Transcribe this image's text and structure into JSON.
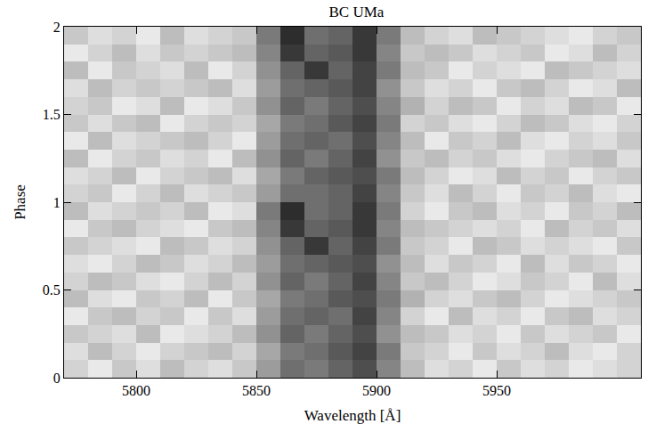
{
  "chart_data": {
    "type": "heatmap",
    "title": "BC UMa",
    "x_label": "Wavelength [Å]",
    "y_label": "Phase",
    "x": [
      5775,
      5785,
      5795,
      5805,
      5815,
      5825,
      5835,
      5845,
      5855,
      5865,
      5875,
      5885,
      5895,
      5905,
      5915,
      5925,
      5935,
      5945,
      5955,
      5965,
      5975,
      5985,
      5995,
      6005
    ],
    "y": [
      0.05,
      0.15,
      0.25,
      0.35,
      0.45,
      0.55,
      0.65,
      0.75,
      0.85,
      0.95,
      1.05,
      1.15,
      1.25,
      1.35,
      1.45,
      1.55,
      1.65,
      1.75,
      1.85,
      1.95
    ],
    "cells": [
      [
        0.2,
        0.1,
        0.25,
        0.15,
        0.3,
        0.2,
        0.15,
        0.25,
        0.45,
        0.65,
        0.6,
        0.7,
        0.8,
        0.55,
        0.3,
        0.15,
        0.2,
        0.1,
        0.25,
        0.15,
        0.2,
        0.1,
        0.15,
        0.2
      ],
      [
        0.15,
        0.3,
        0.2,
        0.1,
        0.2,
        0.25,
        0.3,
        0.2,
        0.4,
        0.6,
        0.65,
        0.75,
        0.85,
        0.6,
        0.25,
        0.2,
        0.1,
        0.25,
        0.15,
        0.2,
        0.3,
        0.15,
        0.1,
        0.2
      ],
      [
        0.25,
        0.2,
        0.15,
        0.3,
        0.1,
        0.15,
        0.2,
        0.3,
        0.5,
        0.7,
        0.6,
        0.7,
        0.8,
        0.5,
        0.3,
        0.25,
        0.15,
        0.2,
        0.1,
        0.25,
        0.15,
        0.2,
        0.25,
        0.1
      ],
      [
        0.1,
        0.25,
        0.3,
        0.2,
        0.25,
        0.1,
        0.25,
        0.15,
        0.45,
        0.65,
        0.7,
        0.65,
        0.85,
        0.55,
        0.2,
        0.1,
        0.3,
        0.15,
        0.2,
        0.1,
        0.25,
        0.3,
        0.15,
        0.2
      ],
      [
        0.3,
        0.15,
        0.1,
        0.25,
        0.2,
        0.3,
        0.1,
        0.25,
        0.4,
        0.6,
        0.65,
        0.75,
        0.8,
        0.6,
        0.35,
        0.2,
        0.15,
        0.25,
        0.3,
        0.2,
        0.1,
        0.15,
        0.2,
        0.25
      ],
      [
        0.2,
        0.3,
        0.25,
        0.15,
        0.1,
        0.2,
        0.3,
        0.2,
        0.5,
        0.7,
        0.6,
        0.7,
        0.85,
        0.55,
        0.25,
        0.3,
        0.2,
        0.1,
        0.15,
        0.25,
        0.2,
        0.1,
        0.3,
        0.15
      ],
      [
        0.15,
        0.1,
        0.2,
        0.3,
        0.25,
        0.15,
        0.2,
        0.3,
        0.45,
        0.65,
        0.7,
        0.75,
        0.8,
        0.5,
        0.3,
        0.15,
        0.25,
        0.2,
        0.1,
        0.3,
        0.15,
        0.25,
        0.2,
        0.1
      ],
      [
        0.25,
        0.2,
        0.15,
        0.1,
        0.3,
        0.25,
        0.15,
        0.2,
        0.5,
        0.7,
        0.9,
        0.7,
        0.85,
        0.6,
        0.25,
        0.2,
        0.1,
        0.3,
        0.25,
        0.15,
        0.2,
        0.15,
        0.1,
        0.25
      ],
      [
        0.1,
        0.25,
        0.3,
        0.2,
        0.15,
        0.1,
        0.25,
        0.3,
        0.55,
        0.9,
        0.7,
        0.75,
        0.9,
        0.55,
        0.3,
        0.25,
        0.2,
        0.15,
        0.2,
        0.1,
        0.3,
        0.2,
        0.25,
        0.15
      ],
      [
        0.3,
        0.15,
        0.2,
        0.25,
        0.2,
        0.3,
        0.1,
        0.15,
        0.6,
        0.95,
        0.65,
        0.7,
        0.9,
        0.6,
        0.2,
        0.1,
        0.25,
        0.3,
        0.15,
        0.2,
        0.1,
        0.25,
        0.2,
        0.3
      ],
      [
        0.2,
        0.25,
        0.1,
        0.2,
        0.3,
        0.15,
        0.2,
        0.25,
        0.45,
        0.65,
        0.65,
        0.7,
        0.85,
        0.55,
        0.25,
        0.15,
        0.3,
        0.2,
        0.1,
        0.25,
        0.2,
        0.3,
        0.15,
        0.1
      ],
      [
        0.15,
        0.2,
        0.3,
        0.1,
        0.2,
        0.25,
        0.3,
        0.15,
        0.4,
        0.6,
        0.7,
        0.75,
        0.8,
        0.6,
        0.3,
        0.2,
        0.1,
        0.15,
        0.3,
        0.2,
        0.25,
        0.1,
        0.2,
        0.25
      ],
      [
        0.3,
        0.1,
        0.2,
        0.25,
        0.15,
        0.2,
        0.1,
        0.3,
        0.5,
        0.7,
        0.6,
        0.7,
        0.85,
        0.5,
        0.25,
        0.3,
        0.2,
        0.25,
        0.15,
        0.1,
        0.2,
        0.25,
        0.3,
        0.15
      ],
      [
        0.1,
        0.3,
        0.15,
        0.2,
        0.25,
        0.3,
        0.2,
        0.1,
        0.45,
        0.65,
        0.7,
        0.65,
        0.8,
        0.55,
        0.3,
        0.1,
        0.25,
        0.2,
        0.3,
        0.15,
        0.1,
        0.2,
        0.15,
        0.25
      ],
      [
        0.25,
        0.15,
        0.25,
        0.3,
        0.1,
        0.2,
        0.25,
        0.2,
        0.4,
        0.6,
        0.65,
        0.75,
        0.85,
        0.6,
        0.2,
        0.25,
        0.15,
        0.1,
        0.2,
        0.3,
        0.25,
        0.15,
        0.1,
        0.2
      ],
      [
        0.2,
        0.25,
        0.1,
        0.15,
        0.3,
        0.1,
        0.15,
        0.25,
        0.5,
        0.7,
        0.6,
        0.7,
        0.8,
        0.55,
        0.35,
        0.2,
        0.3,
        0.25,
        0.1,
        0.2,
        0.15,
        0.3,
        0.25,
        0.1
      ],
      [
        0.15,
        0.3,
        0.2,
        0.25,
        0.2,
        0.25,
        0.3,
        0.15,
        0.45,
        0.65,
        0.7,
        0.75,
        0.85,
        0.5,
        0.25,
        0.15,
        0.2,
        0.1,
        0.25,
        0.3,
        0.2,
        0.1,
        0.15,
        0.3
      ],
      [
        0.3,
        0.1,
        0.25,
        0.2,
        0.15,
        0.3,
        0.1,
        0.2,
        0.5,
        0.7,
        0.9,
        0.7,
        0.85,
        0.6,
        0.3,
        0.25,
        0.1,
        0.2,
        0.15,
        0.1,
        0.3,
        0.25,
        0.2,
        0.15
      ],
      [
        0.1,
        0.2,
        0.3,
        0.15,
        0.25,
        0.2,
        0.25,
        0.3,
        0.55,
        0.9,
        0.7,
        0.75,
        0.9,
        0.55,
        0.25,
        0.3,
        0.25,
        0.15,
        0.2,
        0.25,
        0.1,
        0.15,
        0.3,
        0.2
      ],
      [
        0.25,
        0.15,
        0.2,
        0.1,
        0.3,
        0.15,
        0.2,
        0.25,
        0.6,
        0.95,
        0.65,
        0.7,
        0.9,
        0.6,
        0.3,
        0.2,
        0.15,
        0.3,
        0.25,
        0.2,
        0.15,
        0.1,
        0.2,
        0.25
      ]
    ],
    "zlim": [
      0,
      1
    ],
    "xlim": [
      5770,
      6010
    ],
    "ylim": [
      0,
      2
    ],
    "xticks": [
      5800,
      5850,
      5900,
      5950
    ],
    "yticks": [
      0,
      0.5,
      1,
      1.5,
      2
    ]
  }
}
